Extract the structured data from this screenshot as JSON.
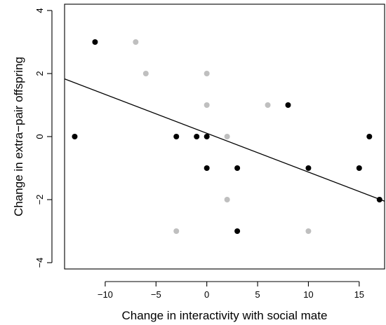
{
  "chart_data": {
    "type": "scatter",
    "title": "",
    "xlabel": "Change in interactivity with social mate",
    "ylabel": "Change in extra−pair offspring",
    "xlim": [
      -14,
      17.5
    ],
    "ylim": [
      -4.2,
      4.2
    ],
    "xticks": [
      -10,
      -5,
      0,
      5,
      10,
      15
    ],
    "xtick_labels": [
      "−10",
      "−5",
      "0",
      "5",
      "10",
      "15"
    ],
    "yticks": [
      -4,
      -2,
      0,
      2,
      4
    ],
    "ytick_labels": [
      "−4",
      "−2",
      "0",
      "2",
      "4"
    ],
    "grid": false,
    "legend": "none",
    "series": [
      {
        "color": "#000000",
        "x": [
          -11,
          -13,
          -3,
          -1,
          0,
          0,
          3,
          3,
          8,
          10,
          15,
          16,
          17
        ],
        "y": [
          3,
          0,
          0,
          0,
          0,
          -1,
          -1,
          -3,
          1,
          -1,
          -1,
          0,
          -2
        ]
      },
      {
        "color": "#bfbfbf",
        "x": [
          -7,
          -6,
          0,
          0,
          2,
          6,
          -3,
          2,
          10
        ],
        "y": [
          3,
          2,
          2,
          1,
          0,
          1,
          -3,
          -2,
          -3
        ]
      }
    ],
    "fit_line": {
      "x": [
        -14,
        17.5
      ],
      "y": [
        1.83,
        -2.05
      ],
      "color": "#000000"
    }
  }
}
